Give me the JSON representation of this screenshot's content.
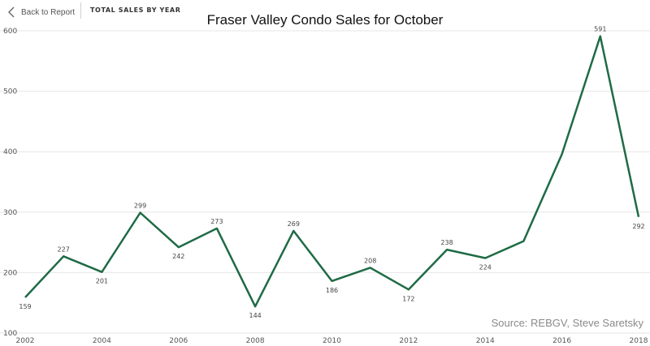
{
  "nav": {
    "back_label": "Back to Report",
    "page_tab": "TOTAL SALES BY YEAR"
  },
  "source_text": "Source: REBGV, Steve Saretsky",
  "colors": {
    "line": "#1e6b45",
    "grid": "#e6e6e6"
  },
  "chart_data": {
    "type": "line",
    "title": "Fraser Valley Condo Sales for October",
    "xlabel": "",
    "ylabel": "",
    "x": [
      2002,
      2003,
      2004,
      2005,
      2006,
      2007,
      2008,
      2009,
      2010,
      2011,
      2012,
      2013,
      2014,
      2015,
      2016,
      2017,
      2018
    ],
    "series": [
      {
        "values": [
          159,
          227,
          201,
          299,
          242,
          273,
          144,
          269,
          186,
          208,
          172,
          238,
          224,
          252,
          396,
          591,
          292
        ],
        "labels": [
          "159",
          "227",
          "201",
          "299",
          "242",
          "273",
          "144",
          "269",
          "186",
          "208",
          "172",
          "238",
          "224",
          "",
          "",
          "591",
          "292"
        ]
      }
    ],
    "xlim": [
      2002,
      2018
    ],
    "ylim": [
      100,
      600
    ],
    "x_ticks": [
      "2002",
      "2004",
      "2006",
      "2008",
      "2010",
      "2012",
      "2014",
      "2016",
      "2018"
    ],
    "y_ticks": [
      "100",
      "200",
      "300",
      "400",
      "500",
      "600"
    ],
    "grid": true
  }
}
